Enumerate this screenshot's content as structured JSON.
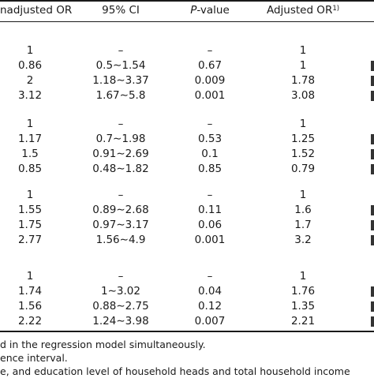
{
  "headers": {
    "unadjusted": "nadjusted OR",
    "ci": "95% CI",
    "p_italic": "P",
    "p_rest": "-value",
    "adjusted": "Adjusted OR",
    "adjusted_sup": "1)"
  },
  "groups": [
    {
      "rows": [
        {
          "or": "1",
          "ci": "–",
          "p": "–",
          "aor": "1"
        },
        {
          "or": "0.86",
          "ci": "0.5∼1.54",
          "p": "0.67",
          "aor": "1"
        },
        {
          "or": "2",
          "ci": "1.18∼3.37",
          "p": "0.009",
          "aor": "1.78"
        },
        {
          "or": "3.12",
          "ci": "1.67∼5.8",
          "p": "0.001",
          "aor": "3.08"
        }
      ]
    },
    {
      "rows": [
        {
          "or": "1",
          "ci": "–",
          "p": "–",
          "aor": "1"
        },
        {
          "or": "1.17",
          "ci": "0.7∼1.98",
          "p": "0.53",
          "aor": "1.25"
        },
        {
          "or": "1.5",
          "ci": "0.91∼2.69",
          "p": "0.1",
          "aor": "1.52"
        },
        {
          "or": "0.85",
          "ci": "0.48∼1.82",
          "p": "0.85",
          "aor": "0.79"
        }
      ]
    },
    {
      "rows": [
        {
          "or": "1",
          "ci": "–",
          "p": "–",
          "aor": "1"
        },
        {
          "or": "1.55",
          "ci": "0.89∼2.68",
          "p": "0.11",
          "aor": "1.6"
        },
        {
          "or": "1.75",
          "ci": "0.97∼3.17",
          "p": "0.06",
          "aor": "1.7"
        },
        {
          "or": "2.77",
          "ci": "1.56∼4.9",
          "p": "0.001",
          "aor": "3.2"
        }
      ]
    },
    {
      "rows": [
        {
          "or": "1",
          "ci": "–",
          "p": "–",
          "aor": "1"
        },
        {
          "or": "1.74",
          "ci": "1∼3.02",
          "p": "0.04",
          "aor": "1.76"
        },
        {
          "or": "1.56",
          "ci": "0.88∼2.75",
          "p": "0.12",
          "aor": "1.35"
        },
        {
          "or": "2.22",
          "ci": "1.24∼3.98",
          "p": "0.007",
          "aor": "2.21"
        }
      ]
    }
  ],
  "footnotes": [
    "d in the regression model simultaneously.",
    "ence interval.",
    "e, and education level of household heads and total household income"
  ]
}
